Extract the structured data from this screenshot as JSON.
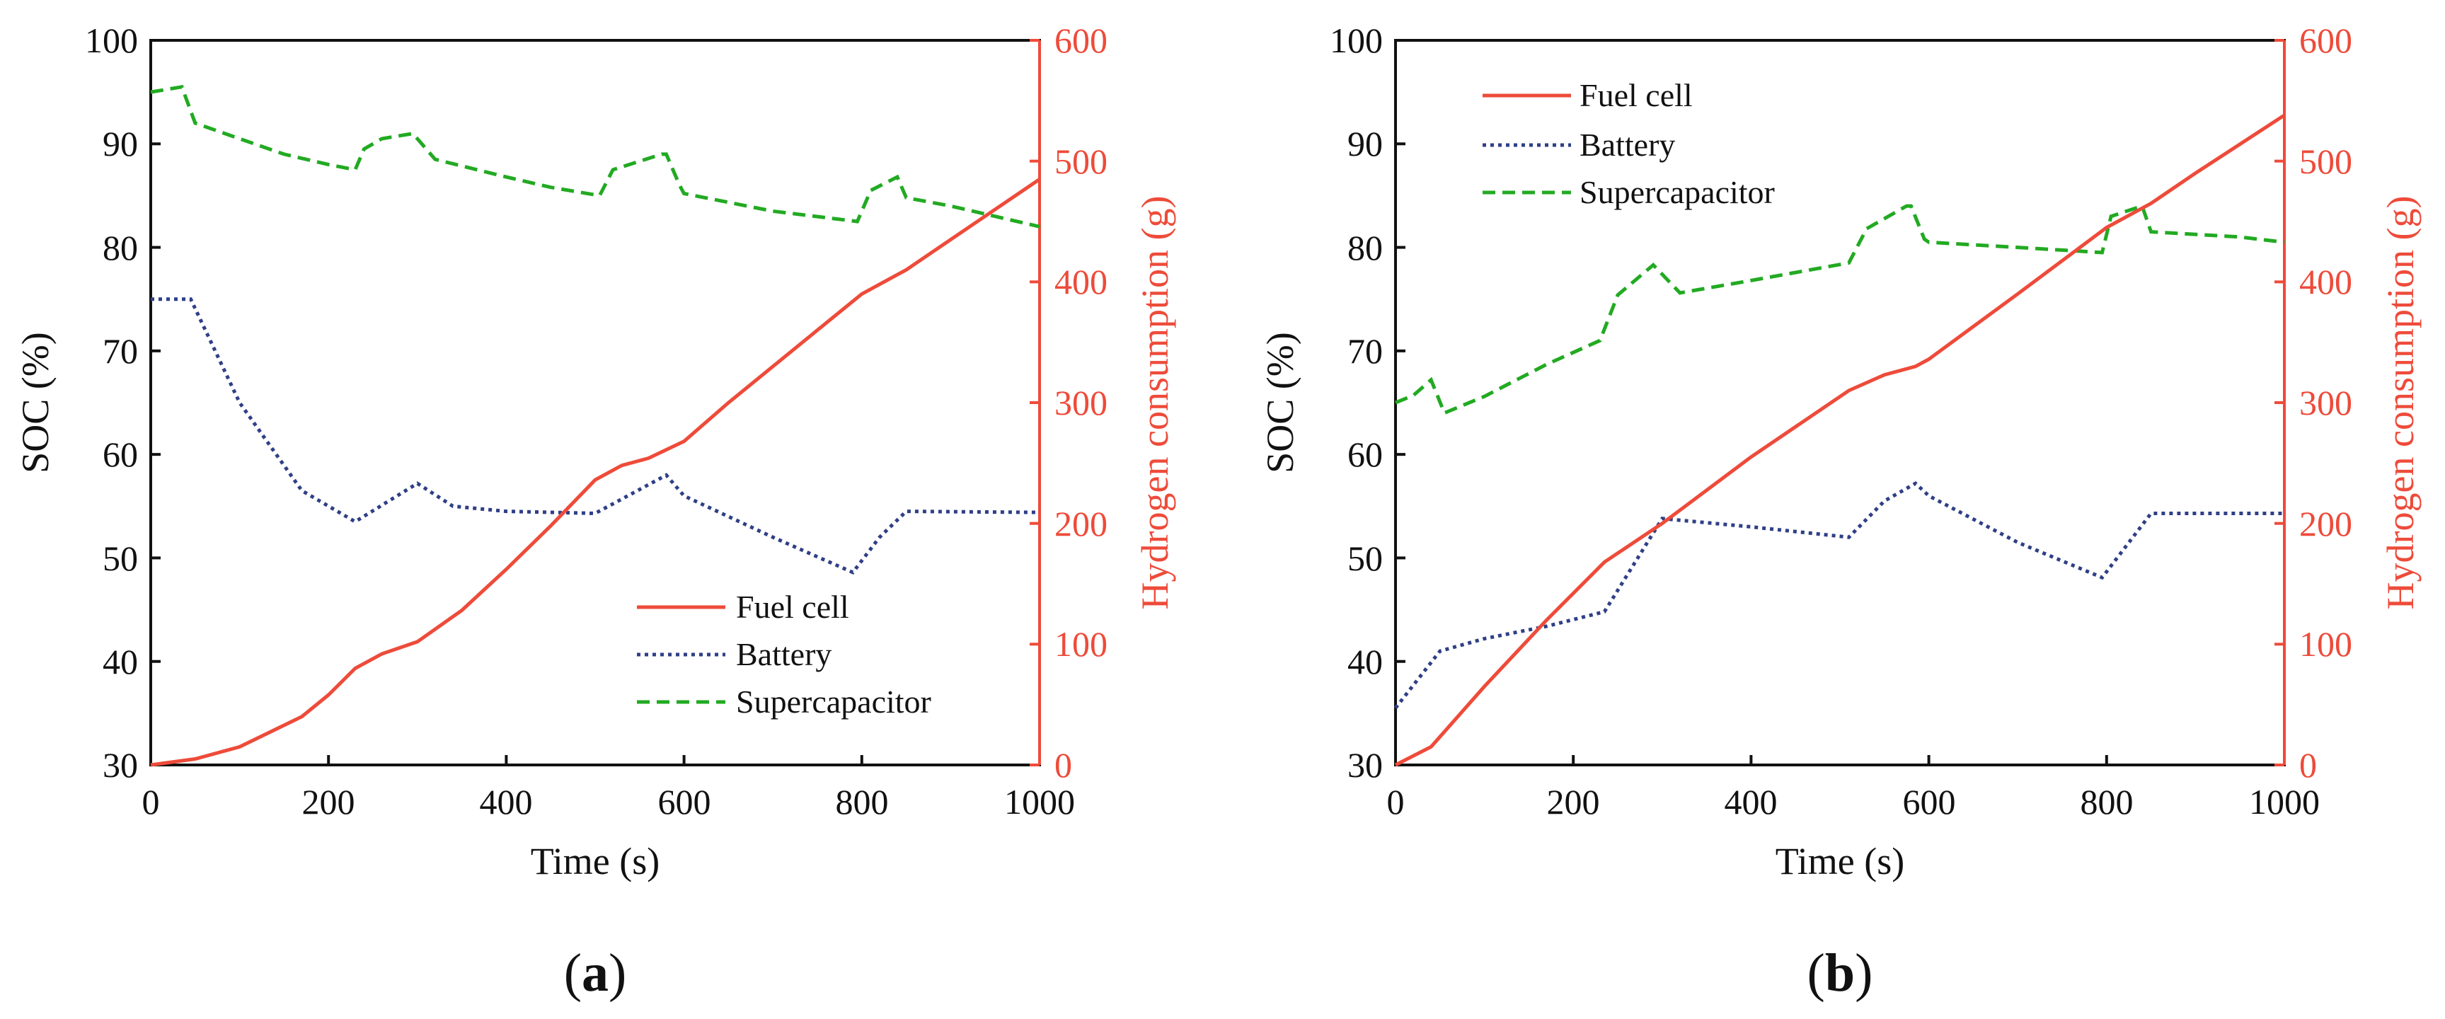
{
  "colors": {
    "fuel_cell": "#ee4b3a",
    "battery": "#2f3f86",
    "supercapacitor": "#22aa22",
    "axis": "#111111",
    "right_axis": "#ee4b3a"
  },
  "chart_data": [
    {
      "type": "line",
      "panel": "a",
      "panel_label": {
        "open": "(",
        "letter": "a",
        "close": ")"
      },
      "xlabel": "Time (s)",
      "ylabel": "SOC (%)",
      "y2label": "Hydrogen consumption (g)",
      "xlim": [
        0,
        1000
      ],
      "ylim": [
        30,
        100
      ],
      "y2lim": [
        0,
        600
      ],
      "xticks": [
        "0",
        "200",
        "400",
        "600",
        "800",
        "1000"
      ],
      "yticks": [
        "30",
        "40",
        "50",
        "60",
        "70",
        "80",
        "90",
        "100"
      ],
      "y2ticks": [
        "0",
        "100",
        "200",
        "300",
        "400",
        "500",
        "600"
      ],
      "grid": false,
      "legend_position": "bottom-right",
      "series": [
        {
          "name": "Fuel cell",
          "axis": "right",
          "style": "solid",
          "x": [
            0,
            50,
            100,
            170,
            200,
            230,
            260,
            300,
            350,
            400,
            450,
            500,
            530,
            560,
            600,
            650,
            700,
            750,
            800,
            850,
            900,
            950,
            1000
          ],
          "y": [
            0,
            5,
            15,
            40,
            58,
            80,
            92,
            102,
            128,
            162,
            198,
            236,
            248,
            254,
            268,
            300,
            330,
            360,
            390,
            410,
            435,
            460,
            485
          ]
        },
        {
          "name": "Battery",
          "axis": "left",
          "style": "dotted",
          "x": [
            0,
            45,
            100,
            170,
            230,
            300,
            340,
            400,
            500,
            580,
            600,
            700,
            790,
            820,
            850,
            1000
          ],
          "y": [
            75,
            75,
            65,
            56.5,
            53.5,
            57.2,
            55,
            54.5,
            54.3,
            58,
            56,
            52,
            48.6,
            52,
            54.5,
            54.4
          ]
        },
        {
          "name": "Supercapacitor",
          "axis": "left",
          "style": "dashed",
          "x": [
            0,
            35,
            50,
            100,
            150,
            200,
            230,
            240,
            260,
            295,
            320,
            400,
            450,
            505,
            520,
            575,
            580,
            595,
            600,
            700,
            795,
            810,
            840,
            850,
            900,
            1000
          ],
          "y": [
            95,
            95.5,
            92,
            90.5,
            89,
            88,
            87.5,
            89.5,
            90.5,
            91,
            88.5,
            86.8,
            85.8,
            85,
            87.5,
            89,
            89,
            86,
            85.2,
            83.5,
            82.5,
            85.5,
            86.8,
            84.8,
            84,
            82
          ]
        }
      ]
    },
    {
      "type": "line",
      "panel": "b",
      "panel_label": {
        "open": "(",
        "letter": "b",
        "close": ")"
      },
      "xlabel": "Time (s)",
      "ylabel": "SOC (%)",
      "y2label": "Hydrogen consumption (g)",
      "xlim": [
        0,
        1000
      ],
      "ylim": [
        30,
        100
      ],
      "y2lim": [
        0,
        600
      ],
      "xticks": [
        "0",
        "200",
        "400",
        "600",
        "800",
        "1000"
      ],
      "yticks": [
        "30",
        "40",
        "50",
        "60",
        "70",
        "80",
        "90",
        "100"
      ],
      "y2ticks": [
        "0",
        "100",
        "200",
        "300",
        "400",
        "500",
        "600"
      ],
      "grid": false,
      "legend_position": "top-left",
      "series": [
        {
          "name": "Fuel cell",
          "axis": "right",
          "style": "solid",
          "x": [
            0,
            40,
            100,
            170,
            235,
            300,
            400,
            510,
            550,
            585,
            600,
            700,
            800,
            850,
            900,
            1000
          ],
          "y": [
            0,
            15,
            65,
            120,
            168,
            200,
            255,
            310,
            323,
            330,
            336,
            390,
            445,
            465,
            490,
            538
          ]
        },
        {
          "name": "Battery",
          "axis": "left",
          "style": "dotted",
          "x": [
            0,
            50,
            100,
            170,
            235,
            300,
            400,
            510,
            550,
            585,
            600,
            700,
            795,
            850,
            1000
          ],
          "y": [
            35.5,
            41,
            42.2,
            43.4,
            44.8,
            53.8,
            53,
            52,
            55.5,
            57.2,
            56,
            51.5,
            48.1,
            54.3,
            54.3
          ]
        },
        {
          "name": "Supercapacitor",
          "axis": "left",
          "style": "dashed",
          "x": [
            0,
            20,
            40,
            55,
            100,
            170,
            230,
            250,
            290,
            320,
            400,
            510,
            530,
            575,
            580,
            595,
            600,
            700,
            795,
            805,
            840,
            850,
            950,
            1000
          ],
          "y": [
            65,
            65.7,
            67.2,
            64,
            65.6,
            68.7,
            71,
            75.4,
            78.3,
            75.6,
            76.8,
            78.5,
            81.8,
            84,
            84,
            80.8,
            80.5,
            80,
            79.5,
            83,
            84,
            81.5,
            81,
            80.5
          ]
        }
      ]
    }
  ]
}
